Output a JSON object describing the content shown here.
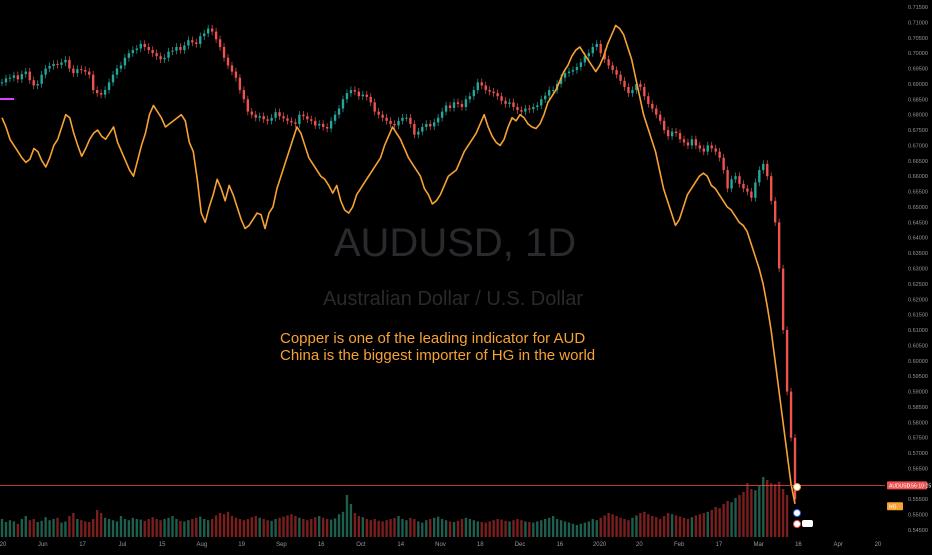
{
  "chart_data": {
    "type": "candlestick-line-overlay",
    "title": "AUDUSD, 1D",
    "subtitle": "Australian Dollar / U.S. Dollar",
    "annotations": [
      "Copper is one of the leading indicator for AUD",
      "China is the biggest importer of HG in the world"
    ],
    "y_axis": {
      "position": "right",
      "range": [
        0.545,
        0.715
      ],
      "ticks": [
        "0.71500",
        "0.71000",
        "0.70500",
        "0.70000",
        "0.69500",
        "0.69000",
        "0.68500",
        "0.68000",
        "0.67500",
        "0.67000",
        "0.66500",
        "0.66000",
        "0.65500",
        "0.65000",
        "0.64500",
        "0.64000",
        "0.63500",
        "0.63000",
        "0.62500",
        "0.62000",
        "0.61500",
        "0.61000",
        "0.60500",
        "0.60000",
        "0.59500",
        "0.59000",
        "0.58500",
        "0.58000",
        "0.57500",
        "0.57000",
        "0.56500",
        "0.56000",
        "0.55500",
        "0.55000",
        "0.54500"
      ]
    },
    "x_axis": {
      "ticks": [
        "20",
        "Jun",
        "17",
        "Jul",
        "15",
        "Aug",
        "19",
        "Sep",
        "16",
        "Oct",
        "14",
        "Nov",
        "18",
        "Dec",
        "16",
        "2020",
        "20",
        "Feb",
        "17",
        "Mar",
        "16",
        "Apr",
        "20"
      ]
    },
    "series": [
      {
        "name": "AUDUSD",
        "kind": "candles",
        "bull_color": "#26a69a",
        "bear_color": "#ef5350",
        "values": [
          0.6905,
          0.6918,
          0.692,
          0.6928,
          0.6915,
          0.6932,
          0.694,
          0.6912,
          0.6895,
          0.69,
          0.693,
          0.695,
          0.6958,
          0.6965,
          0.6962,
          0.697,
          0.6978,
          0.695,
          0.6935,
          0.6948,
          0.6945,
          0.694,
          0.693,
          0.688,
          0.687,
          0.6865,
          0.688,
          0.6905,
          0.693,
          0.695,
          0.696,
          0.6985,
          0.7,
          0.701,
          0.7015,
          0.703,
          0.702,
          0.701,
          0.7,
          0.699,
          0.698,
          0.6985,
          0.7005,
          0.7008,
          0.702,
          0.701,
          0.7025,
          0.7042,
          0.7035,
          0.703,
          0.7055,
          0.7064,
          0.708,
          0.707,
          0.7045,
          0.702,
          0.6985,
          0.696,
          0.694,
          0.692,
          0.688,
          0.685,
          0.681,
          0.68,
          0.679,
          0.6795,
          0.6785,
          0.678,
          0.679,
          0.6808,
          0.6795,
          0.6788,
          0.678,
          0.6775,
          0.677,
          0.68,
          0.6795,
          0.6785,
          0.678,
          0.6765,
          0.677,
          0.676,
          0.6755,
          0.678,
          0.68,
          0.682,
          0.685,
          0.687,
          0.688,
          0.6875,
          0.686,
          0.6865,
          0.6858,
          0.684,
          0.681,
          0.68,
          0.679,
          0.678,
          0.677,
          0.6765,
          0.678,
          0.679,
          0.679,
          0.677,
          0.6735,
          0.6745,
          0.676,
          0.677,
          0.6762,
          0.6775,
          0.679,
          0.681,
          0.683,
          0.6822,
          0.684,
          0.6835,
          0.6825,
          0.685,
          0.686,
          0.688,
          0.6905,
          0.6895,
          0.688,
          0.6875,
          0.687,
          0.686,
          0.6845,
          0.6835,
          0.684,
          0.6825,
          0.6815,
          0.681,
          0.682,
          0.6818,
          0.6825,
          0.683,
          0.685,
          0.6862,
          0.688,
          0.688,
          0.69,
          0.692,
          0.6935,
          0.694,
          0.6945,
          0.6955,
          0.697,
          0.699,
          0.7,
          0.702,
          0.703,
          0.7,
          0.698,
          0.696,
          0.6945,
          0.693,
          0.691,
          0.689,
          0.687,
          0.688,
          0.69,
          0.689,
          0.686,
          0.6835,
          0.682,
          0.68,
          0.678,
          0.675,
          0.673,
          0.6745,
          0.674,
          0.672,
          0.671,
          0.67,
          0.672,
          0.67,
          0.669,
          0.668,
          0.67,
          0.669,
          0.668,
          0.666,
          0.662,
          0.656,
          0.659,
          0.66,
          0.6575,
          0.656,
          0.655,
          0.653,
          0.658,
          0.662,
          0.664,
          0.66,
          0.652,
          0.645,
          0.63,
          0.61,
          0.59,
          0.575,
          0.555
        ]
      },
      {
        "name": "HG",
        "kind": "line",
        "color": "#f7a233",
        "values": [
          0.679,
          0.676,
          0.672,
          0.67,
          0.668,
          0.666,
          0.6645,
          0.6655,
          0.669,
          0.668,
          0.665,
          0.663,
          0.666,
          0.67,
          0.672,
          0.676,
          0.68,
          0.679,
          0.674,
          0.67,
          0.6665,
          0.669,
          0.672,
          0.674,
          0.675,
          0.673,
          0.672,
          0.674,
          0.676,
          0.671,
          0.668,
          0.665,
          0.662,
          0.66,
          0.665,
          0.67,
          0.674,
          0.68,
          0.683,
          0.681,
          0.679,
          0.676,
          0.677,
          0.678,
          0.679,
          0.68,
          0.678,
          0.671,
          0.668,
          0.659,
          0.648,
          0.645,
          0.65,
          0.654,
          0.659,
          0.656,
          0.652,
          0.657,
          0.654,
          0.65,
          0.646,
          0.643,
          0.644,
          0.646,
          0.648,
          0.6475,
          0.643,
          0.648,
          0.65,
          0.656,
          0.66,
          0.664,
          0.668,
          0.672,
          0.676,
          0.674,
          0.67,
          0.666,
          0.664,
          0.662,
          0.66,
          0.659,
          0.657,
          0.6545,
          0.657,
          0.652,
          0.649,
          0.648,
          0.65,
          0.654,
          0.656,
          0.658,
          0.66,
          0.662,
          0.664,
          0.666,
          0.67,
          0.673,
          0.676,
          0.674,
          0.672,
          0.669,
          0.666,
          0.664,
          0.662,
          0.66,
          0.656,
          0.654,
          0.651,
          0.652,
          0.654,
          0.657,
          0.66,
          0.661,
          0.662,
          0.665,
          0.668,
          0.67,
          0.672,
          0.674,
          0.677,
          0.68,
          0.676,
          0.673,
          0.671,
          0.67,
          0.672,
          0.676,
          0.679,
          0.678,
          0.68,
          0.679,
          0.677,
          0.676,
          0.6755,
          0.677,
          0.68,
          0.684,
          0.686,
          0.688,
          0.691,
          0.694,
          0.696,
          0.699,
          0.701,
          0.702,
          0.7,
          0.698,
          0.696,
          0.694,
          0.696,
          0.699,
          0.703,
          0.706,
          0.709,
          0.708,
          0.706,
          0.702,
          0.698,
          0.692,
          0.686,
          0.68,
          0.676,
          0.672,
          0.668,
          0.662,
          0.656,
          0.652,
          0.648,
          0.644,
          0.646,
          0.65,
          0.654,
          0.656,
          0.658,
          0.66,
          0.661,
          0.66,
          0.657,
          0.656,
          0.654,
          0.652,
          0.65,
          0.649,
          0.647,
          0.645,
          0.644,
          0.642,
          0.638,
          0.634,
          0.63,
          0.625,
          0.618,
          0.61,
          0.6,
          0.59,
          0.58,
          0.57,
          0.56,
          0.5535
        ]
      },
      {
        "name": "Volume",
        "kind": "volume-bars",
        "values": [
          0.3,
          0.25,
          0.28,
          0.26,
          0.22,
          0.3,
          0.35,
          0.28,
          0.3,
          0.25,
          0.27,
          0.33,
          0.28,
          0.3,
          0.32,
          0.24,
          0.26,
          0.35,
          0.4,
          0.3,
          0.28,
          0.26,
          0.25,
          0.3,
          0.45,
          0.4,
          0.32,
          0.3,
          0.28,
          0.26,
          0.35,
          0.3,
          0.28,
          0.32,
          0.3,
          0.29,
          0.27,
          0.3,
          0.33,
          0.3,
          0.28,
          0.3,
          0.32,
          0.35,
          0.3,
          0.27,
          0.26,
          0.28,
          0.3,
          0.32,
          0.34,
          0.3,
          0.28,
          0.3,
          0.36,
          0.4,
          0.38,
          0.42,
          0.35,
          0.32,
          0.3,
          0.28,
          0.3,
          0.33,
          0.35,
          0.32,
          0.3,
          0.28,
          0.27,
          0.3,
          0.32,
          0.34,
          0.36,
          0.38,
          0.35,
          0.32,
          0.3,
          0.28,
          0.3,
          0.33,
          0.35,
          0.32,
          0.3,
          0.29,
          0.31,
          0.38,
          0.42,
          0.7,
          0.55,
          0.4,
          0.35,
          0.33,
          0.3,
          0.28,
          0.3,
          0.27,
          0.26,
          0.28,
          0.3,
          0.32,
          0.35,
          0.3,
          0.28,
          0.32,
          0.3,
          0.26,
          0.24,
          0.28,
          0.3,
          0.32,
          0.34,
          0.3,
          0.28,
          0.26,
          0.25,
          0.27,
          0.3,
          0.32,
          0.3,
          0.28,
          0.26,
          0.25,
          0.24,
          0.26,
          0.28,
          0.3,
          0.29,
          0.27,
          0.26,
          0.28,
          0.3,
          0.28,
          0.26,
          0.25,
          0.24,
          0.26,
          0.28,
          0.3,
          0.32,
          0.35,
          0.3,
          0.28,
          0.26,
          0.24,
          0.22,
          0.2,
          0.22,
          0.24,
          0.26,
          0.3,
          0.28,
          0.32,
          0.36,
          0.4,
          0.38,
          0.35,
          0.32,
          0.3,
          0.28,
          0.32,
          0.36,
          0.4,
          0.42,
          0.38,
          0.35,
          0.33,
          0.3,
          0.35,
          0.4,
          0.38,
          0.36,
          0.34,
          0.32,
          0.3,
          0.33,
          0.36,
          0.38,
          0.4,
          0.42,
          0.45,
          0.5,
          0.48,
          0.55,
          0.6,
          0.58,
          0.65,
          0.7,
          0.75,
          0.9,
          0.8,
          0.78,
          0.85,
          1.0,
          0.95,
          0.9,
          0.88,
          0.92,
          0.8,
          0.7
        ]
      }
    ],
    "horizontal_line": {
      "value": 0.5595,
      "color": "#ef5350"
    },
    "price_labels": [
      {
        "text": "AUDUSD",
        "sub": "0.56·10·15",
        "color": "#ef5350",
        "value": 0.5595
      },
      {
        "text": "HG",
        "color": "#f7a233",
        "value": 0.5527
      }
    ],
    "grid": false,
    "legend": "none"
  }
}
